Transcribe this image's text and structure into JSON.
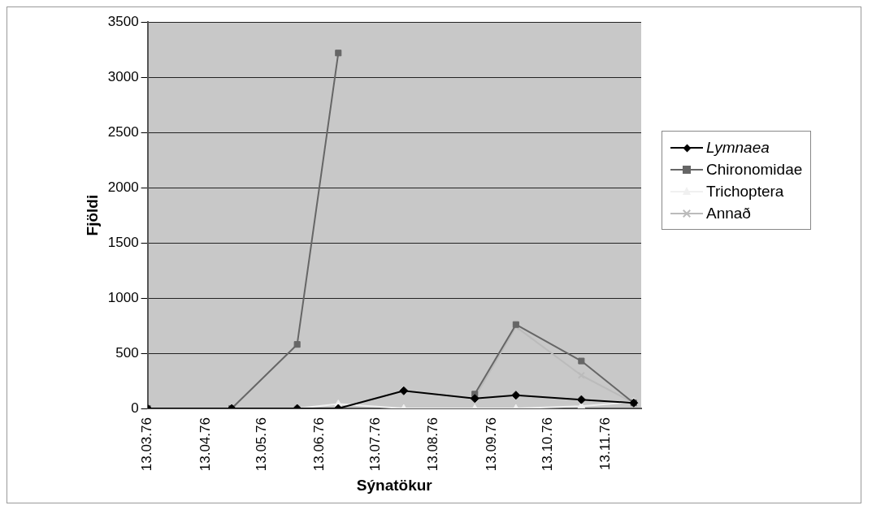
{
  "chart_data": {
    "type": "line",
    "xlabel": "Sýnatökur",
    "ylabel": "Fjöldi",
    "x": [
      "1976-03-13",
      "1976-04-27",
      "1976-06-01",
      "1976-06-23",
      "1976-07-28",
      "1976-09-04",
      "1976-09-26",
      "1976-10-31",
      "1976-11-28"
    ],
    "series": [
      {
        "name": "Lymnaea",
        "color": "#000000",
        "marker": "diamond",
        "values": [
          0,
          0,
          0,
          0,
          160,
          90,
          120,
          80,
          50
        ]
      },
      {
        "name": "Chironomidae",
        "color": "#666666",
        "marker": "square",
        "values": [
          0,
          0,
          580,
          3220,
          null,
          130,
          760,
          430,
          50
        ]
      },
      {
        "name": "Trichoptera",
        "color": "#f0f0f0",
        "marker": "triangle",
        "values": [
          0,
          0,
          0,
          40,
          0,
          0,
          0,
          20,
          60
        ]
      },
      {
        "name": "Annað",
        "color": "#bbbbbb",
        "marker": "cross",
        "values": [
          0,
          0,
          0,
          null,
          null,
          100,
          740,
          300,
          50
        ]
      }
    ],
    "xlim": [
      "1976-03-13",
      "1976-12-02"
    ],
    "xticks": [
      {
        "value": "1976-03-13",
        "label": "13.03.76"
      },
      {
        "value": "1976-04-13",
        "label": "13.04.76"
      },
      {
        "value": "1976-05-13",
        "label": "13.05.76"
      },
      {
        "value": "1976-06-13",
        "label": "13.06.76"
      },
      {
        "value": "1976-07-13",
        "label": "13.07.76"
      },
      {
        "value": "1976-08-13",
        "label": "13.08.76"
      },
      {
        "value": "1976-09-13",
        "label": "13.09.76"
      },
      {
        "value": "1976-10-13",
        "label": "13.10.76"
      },
      {
        "value": "1976-11-13",
        "label": "13.11.76"
      }
    ],
    "ylim": [
      0,
      3500
    ],
    "yticks": [
      0,
      500,
      1000,
      1500,
      2000,
      2500,
      3000,
      3500
    ],
    "grid": "y",
    "legend": "right"
  }
}
